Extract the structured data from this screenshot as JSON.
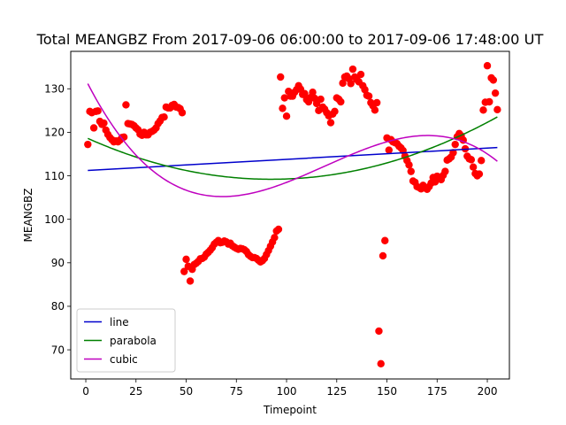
{
  "chart_data": {
    "type": "scatter",
    "title": "Total MEANGBZ From 2017-09-06 06:00:00 to 2017-09-06 17:48:00 UT",
    "xlabel": "Timepoint",
    "ylabel": "MEANGBZ",
    "xlim": [
      -7.5,
      211
    ],
    "ylim": [
      63.3,
      138.6
    ],
    "xticks": [
      0,
      25,
      50,
      75,
      100,
      125,
      150,
      175,
      200
    ],
    "yticks": [
      70,
      80,
      90,
      100,
      110,
      120,
      130
    ],
    "grid": false,
    "legend_position": "lower-left",
    "scatter": {
      "color": "#ff0000",
      "points": [
        [
          1,
          117.2
        ],
        [
          2,
          124.8
        ],
        [
          3,
          124.5
        ],
        [
          4,
          121
        ],
        [
          5,
          124.8
        ],
        [
          6,
          124.9
        ],
        [
          7,
          122.5
        ],
        [
          8,
          121.8
        ],
        [
          9,
          122.1
        ],
        [
          10,
          120.5
        ],
        [
          11,
          119.5
        ],
        [
          12,
          118.8
        ],
        [
          13,
          118.3
        ],
        [
          14,
          117.8
        ],
        [
          15,
          118
        ],
        [
          16,
          117.8
        ],
        [
          17,
          118.2
        ],
        [
          18,
          118.8
        ],
        [
          19,
          118.9
        ],
        [
          20,
          126.3
        ],
        [
          21,
          122
        ],
        [
          22,
          121.9
        ],
        [
          23,
          121.8
        ],
        [
          24,
          121.5
        ],
        [
          25,
          121
        ],
        [
          26,
          120.6
        ],
        [
          27,
          119.6
        ],
        [
          28,
          119.3
        ],
        [
          29,
          120
        ],
        [
          30,
          119.4
        ],
        [
          31,
          119.4
        ],
        [
          32,
          120
        ],
        [
          33,
          120.2
        ],
        [
          34,
          120.5
        ],
        [
          35,
          121
        ],
        [
          36,
          122
        ],
        [
          37,
          122.6
        ],
        [
          38,
          123.4
        ],
        [
          39,
          123.5
        ],
        [
          40,
          125.8
        ],
        [
          41,
          125.6
        ],
        [
          42,
          125.6
        ],
        [
          43,
          126.2
        ],
        [
          44,
          126.4
        ],
        [
          45,
          125.8
        ],
        [
          46,
          125.7
        ],
        [
          47,
          125.4
        ],
        [
          48,
          124.5
        ],
        [
          49,
          88
        ],
        [
          50,
          90.8
        ],
        [
          51,
          89.2
        ],
        [
          52,
          85.8
        ],
        [
          53,
          88.5
        ],
        [
          54,
          89.6
        ],
        [
          55,
          89.9
        ],
        [
          56,
          90.3
        ],
        [
          57,
          90.9
        ],
        [
          58,
          91
        ],
        [
          59,
          91.3
        ],
        [
          60,
          92
        ],
        [
          61,
          92.4
        ],
        [
          62,
          92.9
        ],
        [
          63,
          93.5
        ],
        [
          64,
          94.3
        ],
        [
          65,
          94.7
        ],
        [
          66,
          95.1
        ],
        [
          67,
          94.6
        ],
        [
          68,
          94.7
        ],
        [
          69,
          95
        ],
        [
          70,
          94.8
        ],
        [
          71,
          94.3
        ],
        [
          72,
          94.5
        ],
        [
          73,
          93.9
        ],
        [
          74,
          93.6
        ],
        [
          75,
          93.3
        ],
        [
          76,
          93.1
        ],
        [
          77,
          93.3
        ],
        [
          78,
          93.2
        ],
        [
          79,
          93
        ],
        [
          80,
          92.6
        ],
        [
          81,
          91.9
        ],
        [
          82,
          91.5
        ],
        [
          83,
          91.2
        ],
        [
          84,
          91.2
        ],
        [
          85,
          91
        ],
        [
          86,
          90.6
        ],
        [
          87,
          90.2
        ],
        [
          88,
          90.5
        ],
        [
          89,
          91
        ],
        [
          90,
          91.9
        ],
        [
          91,
          92.8
        ],
        [
          92,
          93.8
        ],
        [
          93,
          94.8
        ],
        [
          94,
          95.8
        ],
        [
          95,
          97.3
        ],
        [
          96,
          97.7
        ],
        [
          97,
          132.7
        ],
        [
          98,
          125.5
        ],
        [
          99,
          127.9
        ],
        [
          100,
          123.7
        ],
        [
          101,
          129.4
        ],
        [
          102,
          128.3
        ],
        [
          103,
          128.3
        ],
        [
          104,
          129.2
        ],
        [
          105,
          129.8
        ],
        [
          106,
          130.7
        ],
        [
          107,
          129.9
        ],
        [
          108,
          128.7
        ],
        [
          109,
          128.9
        ],
        [
          110,
          127.5
        ],
        [
          111,
          127
        ],
        [
          112,
          128
        ],
        [
          113,
          129.2
        ],
        [
          114,
          127.8
        ],
        [
          115,
          126.6
        ],
        [
          116,
          125
        ],
        [
          117,
          127.6
        ],
        [
          118,
          125.8
        ],
        [
          119,
          125.3
        ],
        [
          120,
          124.5
        ],
        [
          121,
          123.8
        ],
        [
          122,
          122.2
        ],
        [
          123,
          124.2
        ],
        [
          124,
          124.8
        ],
        [
          125,
          127.9
        ],
        [
          126,
          127.6
        ],
        [
          127,
          127
        ],
        [
          128,
          131.3
        ],
        [
          129,
          132.7
        ],
        [
          130,
          132.9
        ],
        [
          131,
          132.3
        ],
        [
          132,
          131.2
        ],
        [
          133,
          134.5
        ],
        [
          134,
          132.7
        ],
        [
          135,
          132.1
        ],
        [
          136,
          131.6
        ],
        [
          137,
          133.3
        ],
        [
          138,
          130.7
        ],
        [
          139,
          129.8
        ],
        [
          140,
          128.5
        ],
        [
          141,
          128.3
        ],
        [
          142,
          126.8
        ],
        [
          143,
          126.1
        ],
        [
          144,
          125.1
        ],
        [
          145,
          126.8
        ],
        [
          146,
          74.3
        ],
        [
          147,
          66.8
        ],
        [
          148,
          91.6
        ],
        [
          149,
          95.1
        ],
        [
          150,
          118.7
        ],
        [
          151,
          115.9
        ],
        [
          152,
          118.3
        ],
        [
          153,
          117.8
        ],
        [
          154,
          117.6
        ],
        [
          155,
          117.4
        ],
        [
          156,
          116.8
        ],
        [
          157,
          116.4
        ],
        [
          158,
          115.8
        ],
        [
          159,
          114.5
        ],
        [
          160,
          113.5
        ],
        [
          161,
          112.5
        ],
        [
          162,
          111
        ],
        [
          163,
          108.8
        ],
        [
          164,
          108.5
        ],
        [
          165,
          107.5
        ],
        [
          166,
          107.3
        ],
        [
          167,
          107
        ],
        [
          168,
          107.8
        ],
        [
          169,
          107.2
        ],
        [
          170,
          106.9
        ],
        [
          171,
          107.5
        ],
        [
          172,
          108.3
        ],
        [
          173,
          109.6
        ],
        [
          174,
          108.6
        ],
        [
          175,
          109.9
        ],
        [
          176,
          109.4
        ],
        [
          177,
          109.1
        ],
        [
          178,
          110.1
        ],
        [
          179,
          111
        ],
        [
          180,
          113.6
        ],
        [
          181,
          113.9
        ],
        [
          182,
          114.3
        ],
        [
          183,
          115.3
        ],
        [
          184,
          117.2
        ],
        [
          185,
          119
        ],
        [
          186,
          119.7
        ],
        [
          187,
          119.2
        ],
        [
          188,
          118.2
        ],
        [
          189,
          116.2
        ],
        [
          190,
          114.5
        ],
        [
          191,
          113.9
        ],
        [
          192,
          113.7
        ],
        [
          193,
          112
        ],
        [
          194,
          110.5
        ],
        [
          195,
          110
        ],
        [
          196,
          110.4
        ],
        [
          197,
          113.5
        ],
        [
          198,
          125.1
        ],
        [
          199,
          126.9
        ],
        [
          200,
          135.3
        ],
        [
          201,
          127
        ],
        [
          202,
          132.5
        ],
        [
          203,
          132
        ],
        [
          204,
          129
        ],
        [
          205,
          125.2
        ]
      ]
    },
    "series": [
      {
        "name": "line",
        "kind": "linear",
        "color": "#0000cc",
        "x_range": [
          1,
          205
        ],
        "coeffs": [
          111.2,
          0.0258
        ]
      },
      {
        "name": "parabola",
        "kind": "polynomial",
        "color": "#008000",
        "x_range": [
          1,
          205
        ],
        "coeffs": [
          118.8,
          -0.208,
          0.001127
        ]
      },
      {
        "name": "cubic",
        "kind": "polynomial",
        "color": "#bf00bf",
        "x_range": [
          1,
          205
        ],
        "coeffs": [
          132.07,
          -0.9108,
          0.00937,
          -2.621e-05
        ]
      }
    ]
  }
}
